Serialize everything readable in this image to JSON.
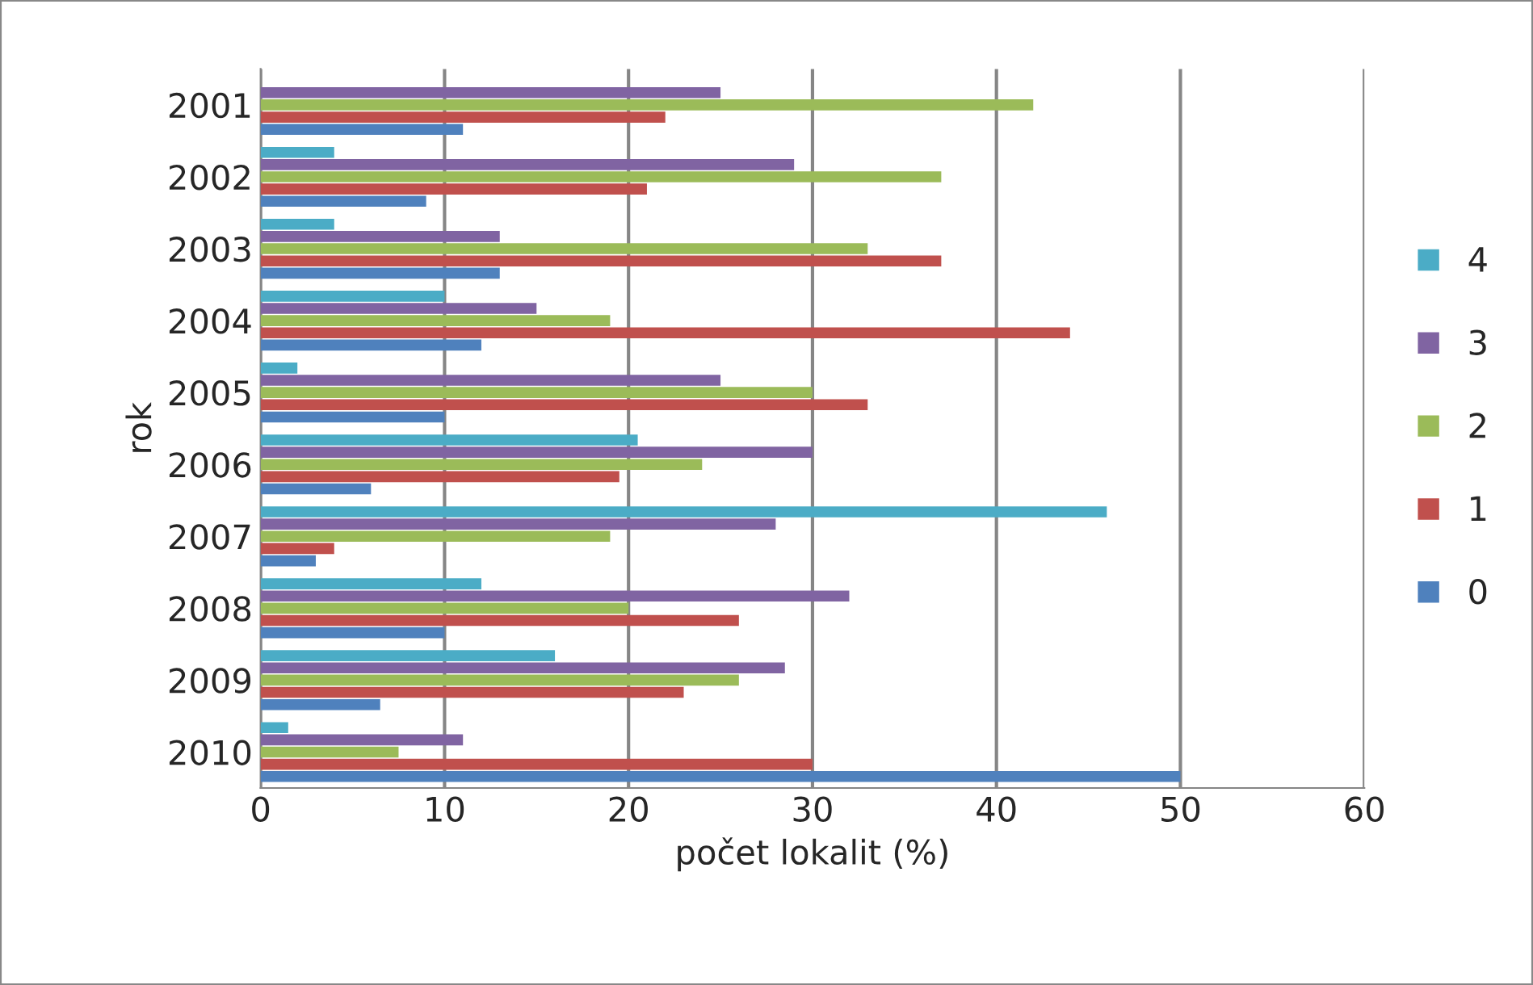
{
  "chart_data": {
    "type": "bar",
    "orientation": "horizontal",
    "xlabel": "počet lokalit (%)",
    "ylabel": "rok",
    "categories": [
      "2001",
      "2002",
      "2003",
      "2004",
      "2005",
      "2006",
      "2007",
      "2008",
      "2009",
      "2010"
    ],
    "series": [
      {
        "name": "0",
        "color": "#4f81bd",
        "values": [
          11,
          9,
          13,
          12,
          10,
          6,
          3,
          10,
          6.5,
          50
        ]
      },
      {
        "name": "1",
        "color": "#c0504d",
        "values": [
          22,
          21,
          37,
          44,
          33,
          19.5,
          4,
          26,
          23,
          30
        ]
      },
      {
        "name": "2",
        "color": "#9bbb59",
        "values": [
          42,
          37,
          33,
          19,
          30,
          24,
          19,
          20,
          26,
          7.5
        ]
      },
      {
        "name": "3",
        "color": "#8064a2",
        "values": [
          25,
          29,
          13,
          15,
          25,
          30,
          28,
          32,
          28.5,
          11
        ]
      },
      {
        "name": "4",
        "color": "#4bacc6",
        "values": [
          null,
          4,
          4,
          10,
          2,
          20.5,
          46,
          12,
          16,
          1.5
        ]
      }
    ],
    "xlim": [
      0,
      60
    ],
    "xticks": [
      0,
      10,
      20,
      30,
      40,
      50,
      60
    ],
    "grid": "x",
    "legend": "right"
  }
}
